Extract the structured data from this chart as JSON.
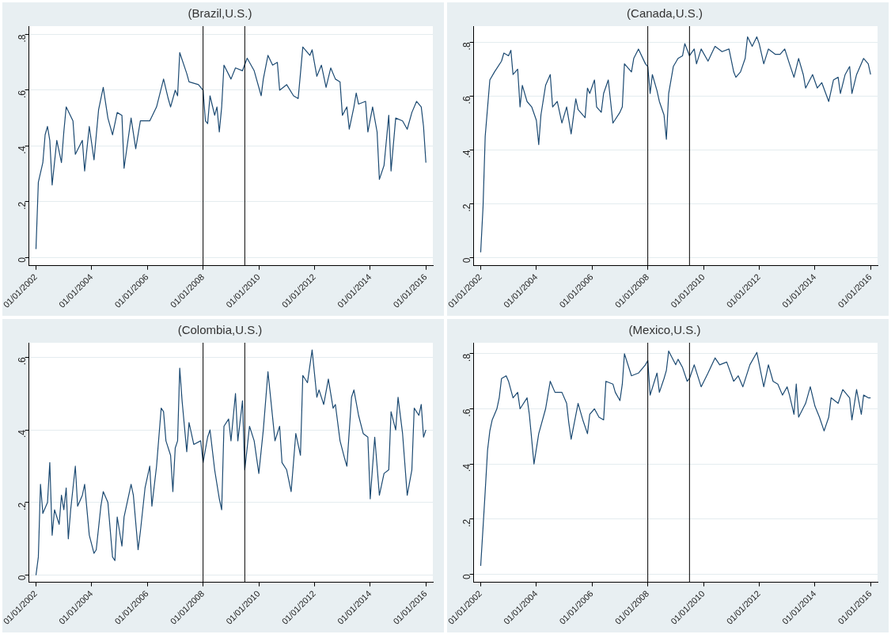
{
  "chart_data": [
    {
      "type": "line",
      "title": "(Brazil,U.S.)",
      "grid": "y",
      "legend": false,
      "marker": "none",
      "line_style": "solid",
      "xlim": [
        "2001-10",
        "2016-04"
      ],
      "ylim": [
        -0.03,
        0.83
      ],
      "xticks": [
        {
          "value": "2002-01-01",
          "label": "01/01/2002"
        },
        {
          "value": "2004-01-01",
          "label": "01/01/2004"
        },
        {
          "value": "2006-01-01",
          "label": "01/01/2006"
        },
        {
          "value": "2008-01-01",
          "label": "01/01/2008"
        },
        {
          "value": "2010-01-01",
          "label": "01/01/2010"
        },
        {
          "value": "2012-01-01",
          "label": "01/01/2012"
        },
        {
          "value": "2014-01-01",
          "label": "01/01/2014"
        },
        {
          "value": "2016-01-01",
          "label": "01/01/2016"
        }
      ],
      "yticks": [
        {
          "value": 0,
          "label": "0"
        },
        {
          "value": 0.2,
          "label": ".2"
        },
        {
          "value": 0.4,
          "label": ".4"
        },
        {
          "value": 0.6,
          "label": ".6"
        },
        {
          "value": 0.8,
          "label": ".8"
        }
      ],
      "ref_lines": [
        {
          "axis": "x",
          "value": "2008-01",
          "color": "#000000"
        },
        {
          "axis": "x",
          "value": "2009-07",
          "color": "#000000"
        }
      ],
      "x": [
        "2002-01",
        "2002-02",
        "2002-04",
        "2002-05",
        "2002-06",
        "2002-07",
        "2002-08",
        "2002-10",
        "2002-12",
        "2003-01",
        "2003-02",
        "2003-05",
        "2003-06",
        "2003-09",
        "2003-10",
        "2003-12",
        "2004-02",
        "2004-04",
        "2004-06",
        "2004-08",
        "2004-10",
        "2004-12",
        "2005-02",
        "2005-03",
        "2005-06",
        "2005-08",
        "2005-10",
        "2006-02",
        "2006-05",
        "2006-08",
        "2006-10",
        "2006-11",
        "2007-01",
        "2007-02",
        "2007-03",
        "2007-06",
        "2007-07",
        "2007-11",
        "2008-01",
        "2008-02",
        "2008-03",
        "2008-04",
        "2008-06",
        "2008-07",
        "2008-08",
        "2008-09",
        "2008-10",
        "2009-01",
        "2009-03",
        "2009-06",
        "2009-08",
        "2009-11",
        "2010-02",
        "2010-03",
        "2010-05",
        "2010-07",
        "2010-09",
        "2010-10",
        "2011-01",
        "2011-04",
        "2011-06",
        "2011-07",
        "2011-08",
        "2011-11",
        "2011-12",
        "2012-02",
        "2012-04",
        "2012-06",
        "2012-08",
        "2012-10",
        "2012-12",
        "2013-01",
        "2013-03",
        "2013-04",
        "2013-06",
        "2013-07",
        "2013-08",
        "2013-11",
        "2013-12",
        "2014-02",
        "2014-04",
        "2014-05",
        "2014-07",
        "2014-09",
        "2014-10",
        "2014-12",
        "2015-03",
        "2015-05",
        "2015-07",
        "2015-09",
        "2015-11",
        "2015-12",
        "2016-01"
      ],
      "series": [
        {
          "color": "#1c4a72",
          "values": [
            0.03,
            0.27,
            0.34,
            0.44,
            0.47,
            0.42,
            0.26,
            0.42,
            0.34,
            0.45,
            0.54,
            0.49,
            0.37,
            0.42,
            0.31,
            0.47,
            0.35,
            0.53,
            0.61,
            0.5,
            0.44,
            0.52,
            0.51,
            0.32,
            0.5,
            0.39,
            0.49,
            0.49,
            0.54,
            0.64,
            0.57,
            0.54,
            0.6,
            0.58,
            0.735,
            0.66,
            0.63,
            0.62,
            0.6,
            0.49,
            0.48,
            0.58,
            0.51,
            0.54,
            0.45,
            0.54,
            0.69,
            0.64,
            0.68,
            0.67,
            0.715,
            0.67,
            0.58,
            0.64,
            0.725,
            0.69,
            0.7,
            0.6,
            0.62,
            0.58,
            0.57,
            0.66,
            0.755,
            0.725,
            0.745,
            0.65,
            0.69,
            0.61,
            0.68,
            0.64,
            0.63,
            0.51,
            0.54,
            0.46,
            0.54,
            0.59,
            0.55,
            0.56,
            0.45,
            0.54,
            0.45,
            0.28,
            0.33,
            0.51,
            0.31,
            0.5,
            0.49,
            0.46,
            0.52,
            0.56,
            0.54,
            0.47,
            0.34
          ]
        }
      ]
    },
    {
      "type": "line",
      "title": "(Canada,U.S.)",
      "grid": "y",
      "legend": false,
      "marker": "none",
      "line_style": "solid",
      "xlim": [
        "2001-10",
        "2016-04"
      ],
      "ylim": [
        -0.03,
        0.86
      ],
      "xticks": [
        {
          "value": "2002-01-01",
          "label": "01/01/2002"
        },
        {
          "value": "2004-01-01",
          "label": "01/01/2004"
        },
        {
          "value": "2006-01-01",
          "label": "01/01/2006"
        },
        {
          "value": "2008-01-01",
          "label": "01/01/2008"
        },
        {
          "value": "2010-01-01",
          "label": "01/01/2010"
        },
        {
          "value": "2012-01-01",
          "label": "01/01/2012"
        },
        {
          "value": "2014-01-01",
          "label": "01/01/2014"
        },
        {
          "value": "2016-01-01",
          "label": "01/01/2016"
        }
      ],
      "yticks": [
        {
          "value": 0,
          "label": "0"
        },
        {
          "value": 0.2,
          "label": ".2"
        },
        {
          "value": 0.4,
          "label": ".4"
        },
        {
          "value": 0.6,
          "label": ".6"
        },
        {
          "value": 0.8,
          "label": ".8"
        }
      ],
      "ref_lines": [
        {
          "axis": "x",
          "value": "2008-01",
          "color": "#000000"
        },
        {
          "axis": "x",
          "value": "2009-07",
          "color": "#000000"
        }
      ],
      "x": [
        "2002-01",
        "2002-02",
        "2002-03",
        "2002-05",
        "2002-07",
        "2002-10",
        "2002-11",
        "2003-01",
        "2003-02",
        "2003-03",
        "2003-05",
        "2003-06",
        "2003-07",
        "2003-09",
        "2003-11",
        "2004-01",
        "2004-02",
        "2004-03",
        "2004-05",
        "2004-07",
        "2004-08",
        "2004-10",
        "2004-12",
        "2005-02",
        "2005-04",
        "2005-06",
        "2005-07",
        "2005-10",
        "2005-11",
        "2005-12",
        "2006-02",
        "2006-03",
        "2006-05",
        "2006-06",
        "2006-08",
        "2006-10",
        "2007-01",
        "2007-02",
        "2007-03",
        "2007-06",
        "2007-07",
        "2007-09",
        "2007-12",
        "2008-01",
        "2008-02",
        "2008-03",
        "2008-05",
        "2008-06",
        "2008-08",
        "2008-09",
        "2008-10",
        "2008-12",
        "2009-02",
        "2009-04",
        "2009-05",
        "2009-07",
        "2009-09",
        "2009-10",
        "2009-12",
        "2010-03",
        "2010-06",
        "2010-09",
        "2010-12",
        "2011-02",
        "2011-03",
        "2011-05",
        "2011-07",
        "2011-08",
        "2011-10",
        "2011-12",
        "2012-01",
        "2012-03",
        "2012-05",
        "2012-08",
        "2012-10",
        "2012-12",
        "2013-02",
        "2013-04",
        "2013-06",
        "2013-08",
        "2013-09",
        "2013-12",
        "2014-02",
        "2014-04",
        "2014-07",
        "2014-09",
        "2014-11",
        "2014-12",
        "2015-02",
        "2015-04",
        "2015-05",
        "2015-07",
        "2015-10",
        "2015-12",
        "2016-01"
      ],
      "series": [
        {
          "color": "#1c4a72",
          "values": [
            0.02,
            0.19,
            0.45,
            0.66,
            0.69,
            0.73,
            0.76,
            0.75,
            0.77,
            0.68,
            0.7,
            0.56,
            0.64,
            0.58,
            0.56,
            0.51,
            0.42,
            0.53,
            0.64,
            0.68,
            0.56,
            0.58,
            0.5,
            0.56,
            0.46,
            0.59,
            0.55,
            0.52,
            0.63,
            0.61,
            0.66,
            0.56,
            0.54,
            0.61,
            0.66,
            0.5,
            0.54,
            0.56,
            0.72,
            0.69,
            0.74,
            0.775,
            0.72,
            0.71,
            0.61,
            0.68,
            0.62,
            0.58,
            0.53,
            0.44,
            0.61,
            0.71,
            0.74,
            0.75,
            0.795,
            0.75,
            0.775,
            0.72,
            0.775,
            0.73,
            0.785,
            0.765,
            0.775,
            0.69,
            0.67,
            0.69,
            0.74,
            0.82,
            0.785,
            0.82,
            0.795,
            0.72,
            0.775,
            0.755,
            0.755,
            0.775,
            0.72,
            0.67,
            0.74,
            0.68,
            0.63,
            0.68,
            0.63,
            0.65,
            0.58,
            0.66,
            0.67,
            0.61,
            0.68,
            0.71,
            0.61,
            0.68,
            0.74,
            0.72,
            0.68
          ]
        }
      ]
    },
    {
      "type": "line",
      "title": "(Colombia,U.S.)",
      "grid": "y",
      "legend": false,
      "marker": "none",
      "line_style": "solid",
      "xlim": [
        "2001-10",
        "2016-04"
      ],
      "ylim": [
        -0.02,
        0.64
      ],
      "xticks": [
        {
          "value": "2002-01-01",
          "label": "01/01/2002"
        },
        {
          "value": "2004-01-01",
          "label": "01/01/2004"
        },
        {
          "value": "2006-01-01",
          "label": "01/01/2006"
        },
        {
          "value": "2008-01-01",
          "label": "01/01/2008"
        },
        {
          "value": "2010-01-01",
          "label": "01/01/2010"
        },
        {
          "value": "2012-01-01",
          "label": "01/01/2012"
        },
        {
          "value": "2014-01-01",
          "label": "01/01/2014"
        },
        {
          "value": "2016-01-01",
          "label": "01/01/2016"
        }
      ],
      "yticks": [
        {
          "value": 0,
          "label": "0"
        },
        {
          "value": 0.2,
          "label": ".2"
        },
        {
          "value": 0.4,
          "label": ".4"
        },
        {
          "value": 0.6,
          "label": ".6"
        }
      ],
      "ref_lines": [
        {
          "axis": "x",
          "value": "2008-01",
          "color": "#000000"
        },
        {
          "axis": "x",
          "value": "2009-07",
          "color": "#000000"
        }
      ],
      "x": [
        "2002-01",
        "2002-02",
        "2002-03",
        "2002-04",
        "2002-06",
        "2002-07",
        "2002-08",
        "2002-09",
        "2002-11",
        "2002-12",
        "2003-01",
        "2003-02",
        "2003-03",
        "2003-04",
        "2003-06",
        "2003-07",
        "2003-09",
        "2003-10",
        "2003-12",
        "2004-02",
        "2004-03",
        "2004-05",
        "2004-06",
        "2004-08",
        "2004-10",
        "2004-11",
        "2004-12",
        "2005-01",
        "2005-02",
        "2005-03",
        "2005-06",
        "2005-07",
        "2005-09",
        "2005-10",
        "2005-12",
        "2006-02",
        "2006-03",
        "2006-05",
        "2006-07",
        "2006-08",
        "2006-09",
        "2006-11",
        "2006-12",
        "2007-01",
        "2007-02",
        "2007-03",
        "2007-04",
        "2007-06",
        "2007-07",
        "2007-09",
        "2007-12",
        "2008-01",
        "2008-03",
        "2008-04",
        "2008-06",
        "2008-08",
        "2008-09",
        "2008-10",
        "2008-12",
        "2009-01",
        "2009-03",
        "2009-04",
        "2009-06",
        "2009-07",
        "2009-09",
        "2009-11",
        "2010-01",
        "2010-03",
        "2010-05",
        "2010-08",
        "2010-10",
        "2010-11",
        "2011-01",
        "2011-03",
        "2011-05",
        "2011-07",
        "2011-08",
        "2011-10",
        "2011-12",
        "2012-02",
        "2012-03",
        "2012-05",
        "2012-07",
        "2012-09",
        "2012-10",
        "2012-12",
        "2013-02",
        "2013-03",
        "2013-05",
        "2013-06",
        "2013-08",
        "2013-10",
        "2013-12",
        "2014-01",
        "2014-03",
        "2014-04",
        "2014-05",
        "2014-07",
        "2014-09",
        "2014-10",
        "2014-12",
        "2015-01",
        "2015-03",
        "2015-05",
        "2015-07",
        "2015-08",
        "2015-10",
        "2015-11",
        "2015-12",
        "2016-01"
      ],
      "series": [
        {
          "color": "#1c4a72",
          "values": [
            0.0,
            0.05,
            0.25,
            0.17,
            0.2,
            0.31,
            0.11,
            0.18,
            0.14,
            0.22,
            0.18,
            0.24,
            0.1,
            0.18,
            0.3,
            0.19,
            0.22,
            0.25,
            0.11,
            0.06,
            0.07,
            0.19,
            0.23,
            0.2,
            0.05,
            0.04,
            0.16,
            0.12,
            0.08,
            0.16,
            0.25,
            0.22,
            0.07,
            0.12,
            0.24,
            0.3,
            0.19,
            0.3,
            0.46,
            0.45,
            0.37,
            0.33,
            0.23,
            0.35,
            0.37,
            0.57,
            0.48,
            0.34,
            0.42,
            0.36,
            0.37,
            0.31,
            0.38,
            0.4,
            0.29,
            0.21,
            0.18,
            0.41,
            0.43,
            0.37,
            0.5,
            0.37,
            0.48,
            0.29,
            0.41,
            0.37,
            0.28,
            0.4,
            0.56,
            0.37,
            0.41,
            0.31,
            0.29,
            0.23,
            0.39,
            0.33,
            0.55,
            0.53,
            0.62,
            0.49,
            0.51,
            0.47,
            0.54,
            0.46,
            0.47,
            0.37,
            0.32,
            0.3,
            0.49,
            0.51,
            0.44,
            0.39,
            0.38,
            0.21,
            0.38,
            0.3,
            0.22,
            0.28,
            0.29,
            0.45,
            0.4,
            0.49,
            0.39,
            0.22,
            0.29,
            0.46,
            0.44,
            0.47,
            0.38,
            0.4
          ]
        }
      ]
    },
    {
      "type": "line",
      "title": "(Mexico,U.S.)",
      "grid": "y",
      "legend": false,
      "marker": "none",
      "line_style": "solid",
      "xlim": [
        "2001-10",
        "2016-04"
      ],
      "ylim": [
        -0.03,
        0.84
      ],
      "xticks": [
        {
          "value": "2002-01-01",
          "label": "01/01/2002"
        },
        {
          "value": "2004-01-01",
          "label": "01/01/2004"
        },
        {
          "value": "2006-01-01",
          "label": "01/01/2006"
        },
        {
          "value": "2008-01-01",
          "label": "01/01/2008"
        },
        {
          "value": "2010-01-01",
          "label": "01/01/2010"
        },
        {
          "value": "2012-01-01",
          "label": "01/01/2012"
        },
        {
          "value": "2014-01-01",
          "label": "01/01/2014"
        },
        {
          "value": "2016-01-01",
          "label": "01/01/2016"
        }
      ],
      "yticks": [
        {
          "value": 0,
          "label": "0"
        },
        {
          "value": 0.2,
          "label": ".2"
        },
        {
          "value": 0.4,
          "label": ".4"
        },
        {
          "value": 0.6,
          "label": ".6"
        },
        {
          "value": 0.8,
          "label": ".8"
        }
      ],
      "ref_lines": [
        {
          "axis": "x",
          "value": "2008-01",
          "color": "#000000"
        },
        {
          "axis": "x",
          "value": "2009-07",
          "color": "#000000"
        }
      ],
      "x": [
        "2002-01",
        "2002-02",
        "2002-03",
        "2002-04",
        "2002-05",
        "2002-06",
        "2002-08",
        "2002-09",
        "2002-10",
        "2002-12",
        "2003-01",
        "2003-03",
        "2003-05",
        "2003-06",
        "2003-09",
        "2003-10",
        "2003-12",
        "2004-02",
        "2004-05",
        "2004-07",
        "2004-09",
        "2004-12",
        "2005-02",
        "2005-03",
        "2005-04",
        "2005-07",
        "2005-09",
        "2005-11",
        "2005-12",
        "2006-02",
        "2006-04",
        "2006-06",
        "2006-07",
        "2006-10",
        "2006-11",
        "2007-01",
        "2007-02",
        "2007-03",
        "2007-06",
        "2007-09",
        "2007-12",
        "2008-01",
        "2008-02",
        "2008-05",
        "2008-06",
        "2008-08",
        "2008-09",
        "2008-10",
        "2009-01",
        "2009-02",
        "2009-04",
        "2009-06",
        "2009-07",
        "2009-09",
        "2009-12",
        "2010-03",
        "2010-06",
        "2010-08",
        "2010-11",
        "2011-02",
        "2011-04",
        "2011-06",
        "2011-09",
        "2011-12",
        "2012-02",
        "2012-03",
        "2012-05",
        "2012-07",
        "2012-09",
        "2012-11",
        "2013-01",
        "2013-02",
        "2013-04",
        "2013-05",
        "2013-06",
        "2013-09",
        "2013-11",
        "2014-01",
        "2014-03",
        "2014-05",
        "2014-07",
        "2014-08",
        "2014-11",
        "2015-01",
        "2015-04",
        "2015-05",
        "2015-07",
        "2015-09",
        "2015-10",
        "2015-12",
        "2016-01"
      ],
      "series": [
        {
          "color": "#1c4a72",
          "values": [
            0.03,
            0.17,
            0.3,
            0.45,
            0.52,
            0.56,
            0.6,
            0.64,
            0.71,
            0.72,
            0.7,
            0.64,
            0.66,
            0.6,
            0.64,
            0.58,
            0.4,
            0.51,
            0.6,
            0.7,
            0.66,
            0.66,
            0.62,
            0.55,
            0.49,
            0.62,
            0.56,
            0.51,
            0.58,
            0.6,
            0.57,
            0.56,
            0.7,
            0.69,
            0.66,
            0.63,
            0.69,
            0.8,
            0.72,
            0.73,
            0.76,
            0.775,
            0.65,
            0.73,
            0.66,
            0.71,
            0.74,
            0.81,
            0.76,
            0.78,
            0.75,
            0.7,
            0.71,
            0.76,
            0.68,
            0.73,
            0.785,
            0.76,
            0.77,
            0.7,
            0.72,
            0.68,
            0.76,
            0.805,
            0.72,
            0.68,
            0.76,
            0.7,
            0.69,
            0.65,
            0.68,
            0.65,
            0.58,
            0.69,
            0.57,
            0.62,
            0.68,
            0.61,
            0.57,
            0.52,
            0.57,
            0.64,
            0.62,
            0.67,
            0.64,
            0.56,
            0.67,
            0.58,
            0.65,
            0.64,
            0.64
          ]
        }
      ]
    }
  ]
}
